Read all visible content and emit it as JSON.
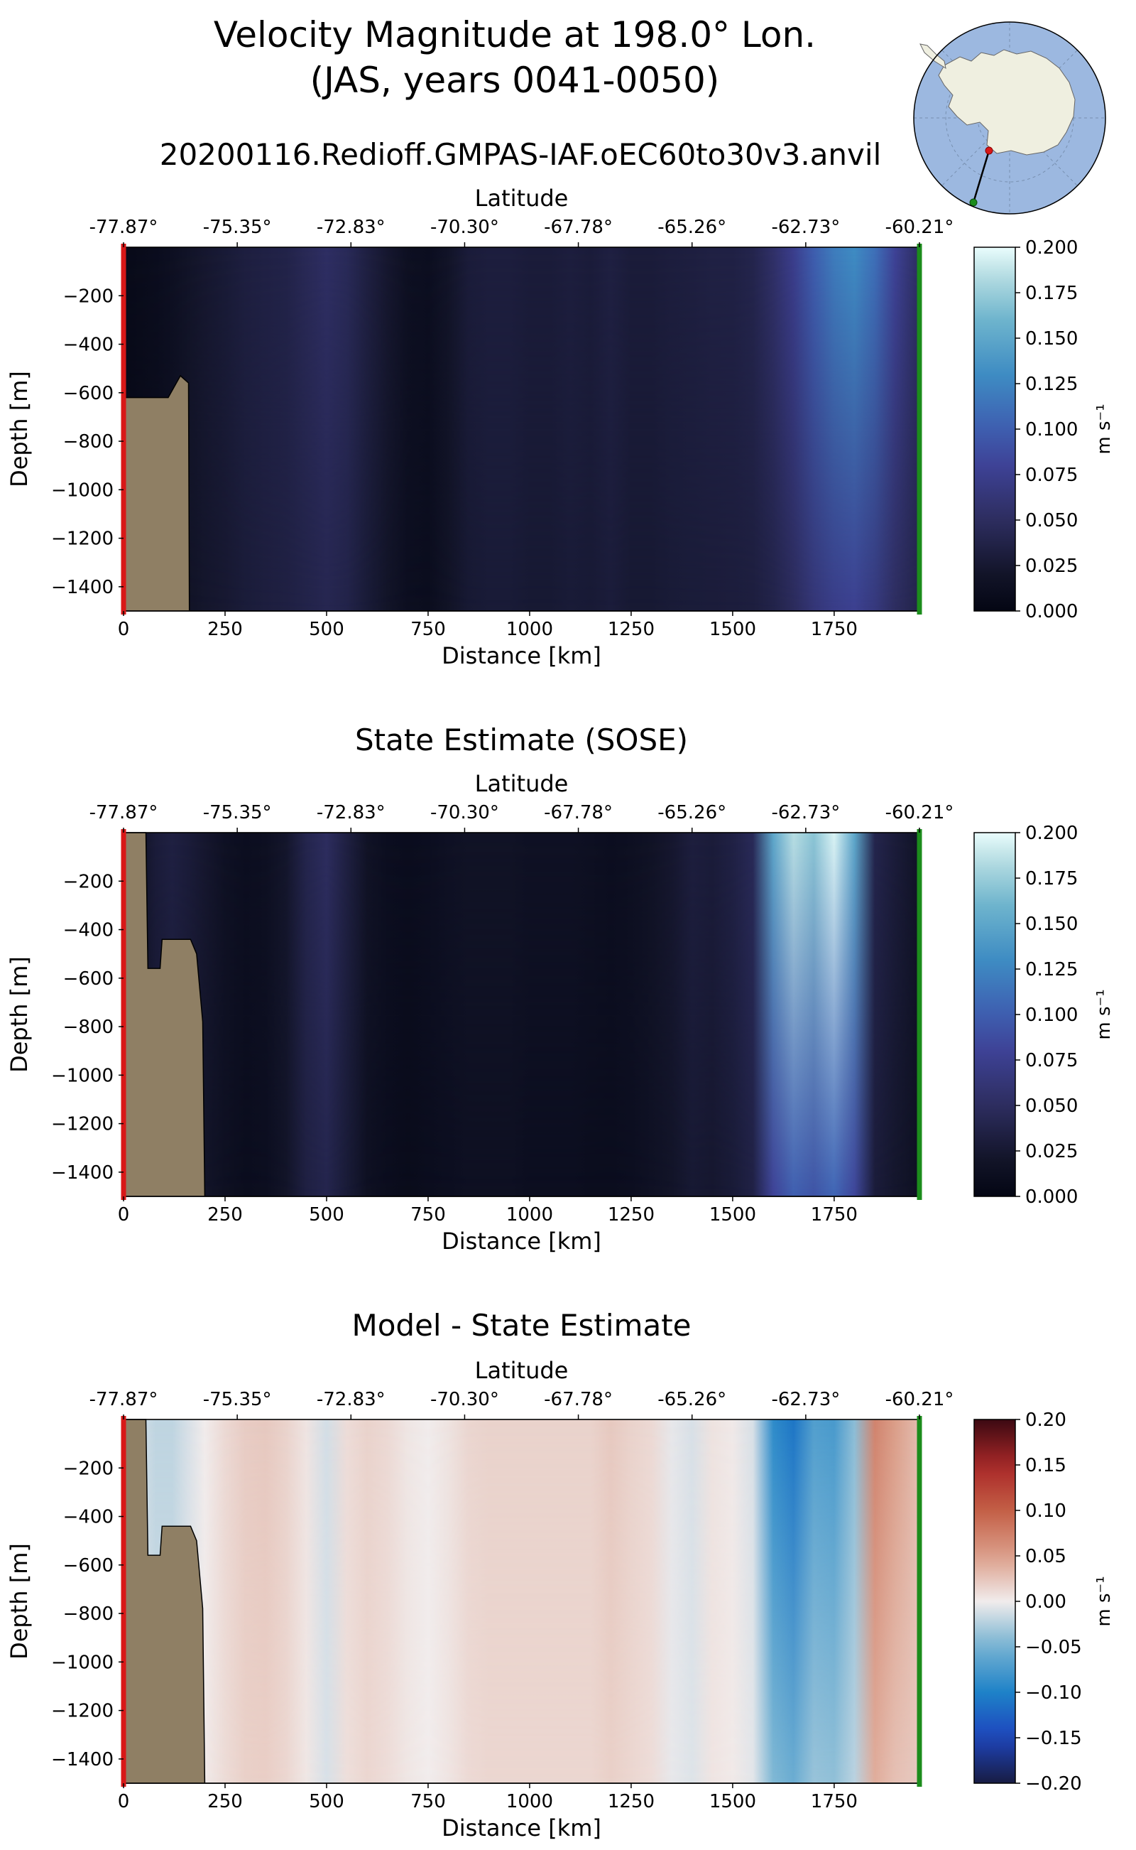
{
  "figure": {
    "title_line1": "Velocity Magnitude at 198.0° Lon.",
    "title_line2": "(JAS, years 0041-0050)",
    "run_name": "20200116.Redioff.GMPAS-IAF.oEC60to30v3.anvil"
  },
  "colors": {
    "land": "#8f7f64",
    "start_marker": "#d81818",
    "end_marker": "#1c8c1c",
    "globe_ocean": "#9cb8e0",
    "globe_land": "#efefe0"
  },
  "inset_map": {
    "projection": "south-polar stereographic",
    "transect_start_marker": "red",
    "transect_end_marker": "green"
  },
  "chart_data": [
    {
      "type": "heatmap",
      "panel": "model",
      "title": "",
      "xlabel": "Distance [km]",
      "ylabel": "Depth [m]",
      "top_xlabel": "Latitude",
      "xlim": [
        0,
        1960
      ],
      "ylim": [
        -1500,
        0
      ],
      "xticks": [
        0,
        250,
        500,
        750,
        1000,
        1250,
        1500,
        1750
      ],
      "xtick_labels": [
        "0",
        "250",
        "500",
        "750",
        "1000",
        "1250",
        "1500",
        "1750"
      ],
      "yticks": [
        -200,
        -400,
        -600,
        -800,
        -1000,
        -1200,
        -1400
      ],
      "ytick_labels": [
        "−200",
        "−400",
        "−600",
        "−800",
        "−1000",
        "−1200",
        "−1400"
      ],
      "top_xticks": [
        0,
        280,
        560,
        840,
        1120,
        1400,
        1680,
        1960
      ],
      "top_tick_labels": [
        "-77.87°",
        "-75.35°",
        "-72.83°",
        "-70.30°",
        "-67.78°",
        "-65.26°",
        "-62.73°",
        "-60.21°"
      ],
      "colormap": "ice",
      "clim": [
        0.0,
        0.2
      ],
      "cbar_label": "m s⁻¹",
      "cbar_ticks": [
        0.0,
        0.025,
        0.05,
        0.075,
        0.1,
        0.125,
        0.15,
        0.175,
        0.2
      ],
      "cbar_tick_labels": [
        "0.000",
        "0.025",
        "0.050",
        "0.075",
        "0.100",
        "0.125",
        "0.150",
        "0.175",
        "0.200"
      ],
      "columns_km": [
        0,
        40,
        80,
        120,
        160,
        200,
        250,
        300,
        350,
        400,
        450,
        500,
        550,
        600,
        650,
        700,
        750,
        800,
        850,
        900,
        950,
        1000,
        1050,
        1100,
        1150,
        1200,
        1250,
        1300,
        1350,
        1400,
        1450,
        1500,
        1550,
        1600,
        1650,
        1700,
        1750,
        1800,
        1850,
        1900,
        1960
      ],
      "surface_values": [
        0.006,
        0.008,
        0.01,
        0.014,
        0.02,
        0.024,
        0.028,
        0.033,
        0.036,
        0.038,
        0.045,
        0.052,
        0.046,
        0.034,
        0.024,
        0.014,
        0.012,
        0.02,
        0.03,
        0.032,
        0.032,
        0.03,
        0.03,
        0.032,
        0.03,
        0.034,
        0.03,
        0.03,
        0.032,
        0.033,
        0.035,
        0.036,
        0.04,
        0.055,
        0.075,
        0.1,
        0.12,
        0.13,
        0.112,
        0.08,
        0.05
      ],
      "deep_values": [
        0.004,
        0.006,
        0.008,
        0.012,
        0.018,
        0.022,
        0.025,
        0.029,
        0.032,
        0.034,
        0.038,
        0.042,
        0.038,
        0.028,
        0.02,
        0.012,
        0.01,
        0.018,
        0.026,
        0.028,
        0.028,
        0.026,
        0.026,
        0.028,
        0.027,
        0.03,
        0.026,
        0.026,
        0.028,
        0.029,
        0.03,
        0.031,
        0.032,
        0.038,
        0.048,
        0.062,
        0.072,
        0.076,
        0.066,
        0.05,
        0.038
      ],
      "bathymetry_top_depth_m": [
        -620,
        -620,
        -620,
        -530,
        -560,
        -1500,
        -1500
      ],
      "bathymetry_km": [
        0,
        60,
        110,
        140,
        160,
        162,
        1960
      ]
    },
    {
      "type": "heatmap",
      "panel": "observations",
      "title": "State Estimate (SOSE)",
      "xlabel": "Distance [km]",
      "ylabel": "Depth [m]",
      "top_xlabel": "Latitude",
      "xlim": [
        0,
        1960
      ],
      "ylim": [
        -1500,
        0
      ],
      "xticks": [
        0,
        250,
        500,
        750,
        1000,
        1250,
        1500,
        1750
      ],
      "xtick_labels": [
        "0",
        "250",
        "500",
        "750",
        "1000",
        "1250",
        "1500",
        "1750"
      ],
      "yticks": [
        -200,
        -400,
        -600,
        -800,
        -1000,
        -1200,
        -1400
      ],
      "ytick_labels": [
        "−200",
        "−400",
        "−600",
        "−800",
        "−1000",
        "−1200",
        "−1400"
      ],
      "top_xticks": [
        0,
        280,
        560,
        840,
        1120,
        1400,
        1680,
        1960
      ],
      "top_tick_labels": [
        "-77.87°",
        "-75.35°",
        "-72.83°",
        "-70.30°",
        "-67.78°",
        "-65.26°",
        "-62.73°",
        "-60.21°"
      ],
      "colormap": "ice",
      "clim": [
        0.0,
        0.2
      ],
      "cbar_label": "m s⁻¹",
      "cbar_ticks": [
        0.0,
        0.025,
        0.05,
        0.075,
        0.1,
        0.125,
        0.15,
        0.175,
        0.2
      ],
      "cbar_tick_labels": [
        "0.000",
        "0.025",
        "0.050",
        "0.075",
        "0.100",
        "0.125",
        "0.150",
        "0.175",
        "0.200"
      ],
      "columns_km": [
        0,
        40,
        80,
        120,
        160,
        200,
        250,
        300,
        350,
        400,
        450,
        500,
        550,
        600,
        650,
        700,
        750,
        800,
        850,
        900,
        950,
        1000,
        1050,
        1100,
        1150,
        1200,
        1250,
        1300,
        1350,
        1400,
        1450,
        1500,
        1550,
        1600,
        1650,
        1700,
        1750,
        1800,
        1850,
        1900,
        1960
      ],
      "surface_values": [
        0.01,
        0.02,
        0.03,
        0.034,
        0.03,
        0.024,
        0.016,
        0.012,
        0.014,
        0.022,
        0.04,
        0.05,
        0.034,
        0.018,
        0.012,
        0.01,
        0.012,
        0.016,
        0.018,
        0.018,
        0.018,
        0.016,
        0.016,
        0.016,
        0.014,
        0.012,
        0.014,
        0.018,
        0.024,
        0.032,
        0.03,
        0.036,
        0.046,
        0.15,
        0.185,
        0.17,
        0.195,
        0.15,
        0.04,
        0.03,
        0.018
      ],
      "deep_values": [
        0.008,
        0.016,
        0.024,
        0.028,
        0.024,
        0.02,
        0.014,
        0.01,
        0.012,
        0.02,
        0.034,
        0.04,
        0.028,
        0.014,
        0.01,
        0.008,
        0.01,
        0.012,
        0.014,
        0.014,
        0.014,
        0.012,
        0.012,
        0.012,
        0.01,
        0.01,
        0.012,
        0.016,
        0.02,
        0.026,
        0.024,
        0.028,
        0.036,
        0.08,
        0.1,
        0.092,
        0.104,
        0.082,
        0.03,
        0.022,
        0.014
      ],
      "bathymetry_top_depth_m": [
        0,
        0,
        -560,
        -560,
        -440,
        -440,
        -500,
        -780,
        -1500,
        -1500
      ],
      "bathymetry_km": [
        0,
        55,
        60,
        90,
        95,
        165,
        180,
        195,
        200,
        1960
      ]
    },
    {
      "type": "heatmap",
      "panel": "difference",
      "title": "Model - State Estimate",
      "xlabel": "Distance [km]",
      "ylabel": "Depth [m]",
      "top_xlabel": "Latitude",
      "xlim": [
        0,
        1960
      ],
      "ylim": [
        -1500,
        0
      ],
      "xticks": [
        0,
        250,
        500,
        750,
        1000,
        1250,
        1500,
        1750
      ],
      "xtick_labels": [
        "0",
        "250",
        "500",
        "750",
        "1000",
        "1250",
        "1500",
        "1750"
      ],
      "yticks": [
        -200,
        -400,
        -600,
        -800,
        -1000,
        -1200,
        -1400
      ],
      "ytick_labels": [
        "−200",
        "−400",
        "−600",
        "−800",
        "−1000",
        "−1200",
        "−1400"
      ],
      "top_xticks": [
        0,
        280,
        560,
        840,
        1120,
        1400,
        1680,
        1960
      ],
      "top_tick_labels": [
        "-77.87°",
        "-75.35°",
        "-72.83°",
        "-70.30°",
        "-67.78°",
        "-65.26°",
        "-62.73°",
        "-60.21°"
      ],
      "colormap": "balance",
      "clim": [
        -0.2,
        0.2
      ],
      "cbar_label": "m s⁻¹",
      "cbar_ticks": [
        -0.2,
        -0.15,
        -0.1,
        -0.05,
        0.0,
        0.05,
        0.1,
        0.15,
        0.2
      ],
      "cbar_tick_labels": [
        "−0.20",
        "−0.15",
        "−0.10",
        "−0.05",
        "0.00",
        "0.05",
        "0.10",
        "0.15",
        "0.20"
      ],
      "columns_km": [
        0,
        40,
        80,
        120,
        160,
        200,
        250,
        300,
        350,
        400,
        450,
        500,
        550,
        600,
        650,
        700,
        750,
        800,
        850,
        900,
        950,
        1000,
        1050,
        1100,
        1150,
        1200,
        1250,
        1300,
        1350,
        1400,
        1450,
        1500,
        1550,
        1600,
        1650,
        1700,
        1750,
        1800,
        1850,
        1900,
        1960
      ],
      "surface_values": [
        -0.004,
        -0.012,
        -0.02,
        -0.02,
        -0.01,
        0.0,
        0.012,
        0.02,
        0.022,
        0.016,
        0.005,
        -0.012,
        0.01,
        0.016,
        0.012,
        0.004,
        0.0,
        0.006,
        0.014,
        0.016,
        0.016,
        0.016,
        0.016,
        0.016,
        0.016,
        0.022,
        0.016,
        0.012,
        -0.004,
        -0.01,
        0.006,
        0.002,
        -0.01,
        -0.09,
        -0.11,
        -0.07,
        -0.075,
        -0.04,
        0.07,
        0.05,
        0.03
      ],
      "deep_values": [
        -0.004,
        -0.01,
        -0.016,
        -0.016,
        -0.006,
        0.002,
        0.011,
        0.018,
        0.019,
        0.014,
        0.004,
        -0.01,
        0.009,
        0.014,
        0.01,
        0.004,
        0.0,
        0.005,
        0.012,
        0.014,
        0.014,
        0.014,
        0.014,
        0.014,
        0.014,
        0.018,
        0.014,
        0.01,
        -0.004,
        -0.008,
        0.005,
        0.002,
        -0.006,
        -0.045,
        -0.055,
        -0.035,
        -0.038,
        -0.022,
        0.04,
        0.028,
        0.022
      ],
      "bathymetry_top_depth_m": [
        0,
        0,
        -560,
        -560,
        -440,
        -440,
        -500,
        -780,
        -1500,
        -1500
      ],
      "bathymetry_km": [
        0,
        55,
        60,
        90,
        95,
        165,
        180,
        195,
        200,
        1960
      ]
    }
  ]
}
